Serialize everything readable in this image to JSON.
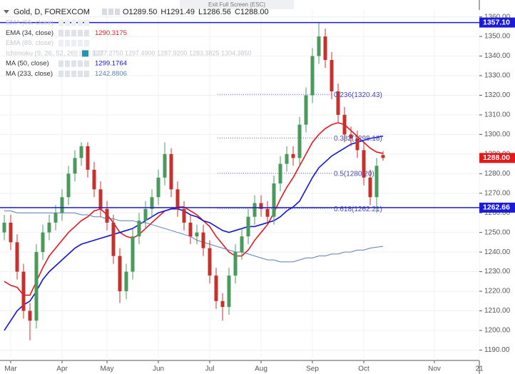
{
  "chart_data": {
    "type": "candlestick",
    "title": "Gold, D, FOREXCOM",
    "ohlc_legend": [
      "O1289.50",
      "H1291.49",
      "L1286.56",
      "C1288.00"
    ],
    "exit_text": "Exit Full Screen (ESC)",
    "categories": [
      null,
      "Mar",
      null,
      null,
      null,
      null,
      null,
      null,
      null,
      "Apr",
      null,
      null,
      null,
      null,
      null,
      null,
      "May",
      null,
      null,
      null,
      null,
      null,
      null,
      null,
      "Jun",
      null,
      null,
      null,
      null,
      null,
      null,
      null,
      "Jul",
      null,
      null,
      null,
      null,
      null,
      null,
      null,
      "Aug",
      null,
      null,
      null,
      null,
      null,
      null,
      null,
      "Sep",
      null,
      null,
      null,
      null,
      null,
      null,
      null,
      "Oct",
      null,
      null,
      null,
      null,
      null,
      null,
      null,
      null,
      null,
      null,
      "Nov",
      null,
      null,
      null,
      null,
      null,
      null,
      "21"
    ],
    "open": [
      1250,
      1255,
      1245,
      1230,
      1210,
      1205,
      1240,
      1250,
      1255,
      1260,
      1268,
      1280,
      1288,
      1294,
      1282,
      1272,
      1262,
      1255,
      1238,
      1220,
      1230,
      1248,
      1256,
      1262,
      1268,
      1278,
      1290,
      1272,
      1262,
      1255,
      1248,
      1250,
      1242,
      1228,
      1215,
      1212,
      1228,
      1240,
      1248,
      1258,
      1265,
      1262,
      1258,
      1275,
      1285,
      1290,
      1288,
      1305,
      1320,
      1340,
      1350,
      1338,
      1322,
      1310,
      1300,
      1298,
      1292,
      1278,
      1268,
      1289.5,
      null,
      null,
      null,
      null,
      null,
      null,
      null,
      null,
      null,
      null,
      null,
      null,
      null,
      null,
      null
    ],
    "high": [
      1259,
      1259,
      1249,
      1234,
      1214,
      1244,
      1254,
      1259,
      1264,
      1272,
      1284,
      1292,
      1296,
      1296,
      1286,
      1276,
      1266,
      1259,
      1242,
      1234,
      1252,
      1260,
      1266,
      1272,
      1282,
      1296,
      1293,
      1276,
      1266,
      1259,
      1254,
      1254,
      1246,
      1232,
      1219,
      1232,
      1244,
      1252,
      1262,
      1269,
      1269,
      1266,
      1279,
      1289,
      1294,
      1294,
      1309,
      1324,
      1344,
      1357.1,
      1354,
      1342,
      1326,
      1314,
      1304,
      1302,
      1296,
      1282,
      1288,
      1291.49,
      null,
      null,
      null,
      null,
      null,
      null,
      null,
      null,
      null,
      null,
      null,
      null,
      null,
      null,
      null
    ],
    "low": [
      1246,
      1241,
      1226,
      1206,
      1195,
      1201,
      1236,
      1246,
      1251,
      1256,
      1264,
      1276,
      1284,
      1278,
      1268,
      1258,
      1251,
      1234,
      1214,
      1216,
      1226,
      1244,
      1252,
      1258,
      1264,
      1274,
      1268,
      1258,
      1251,
      1244,
      1244,
      1238,
      1224,
      1211,
      1205,
      1208,
      1224,
      1236,
      1244,
      1254,
      1258,
      1254,
      1254,
      1271,
      1281,
      1284,
      1284,
      1301,
      1316,
      1336,
      1334,
      1318,
      1306,
      1296,
      1294,
      1288,
      1274,
      1264,
      1260,
      1286.56,
      null,
      null,
      null,
      null,
      null,
      null,
      null,
      null,
      null,
      null,
      null,
      null,
      null,
      null,
      null
    ],
    "close": [
      1255,
      1245,
      1230,
      1210,
      1205,
      1240,
      1250,
      1255,
      1260,
      1268,
      1280,
      1288,
      1294,
      1282,
      1272,
      1262,
      1255,
      1238,
      1220,
      1230,
      1248,
      1256,
      1262,
      1268,
      1278,
      1290,
      1272,
      1262,
      1255,
      1248,
      1250,
      1242,
      1228,
      1215,
      1212,
      1228,
      1240,
      1248,
      1258,
      1265,
      1262,
      1258,
      1275,
      1285,
      1290,
      1288,
      1305,
      1320,
      1340,
      1350,
      1338,
      1322,
      1310,
      1300,
      1298,
      1292,
      1278,
      1268,
      1284,
      1288,
      null,
      null,
      null,
      null,
      null,
      null,
      null,
      null,
      null,
      null,
      null,
      null,
      null,
      null,
      null
    ],
    "up_color": "#4a9a5c",
    "down_color": "#c8302c",
    "series": [
      {
        "name": "EMA (34, close)",
        "color": "#e3191c",
        "values": [
          1225,
          1223,
          1222,
          1218,
          1218,
          1225,
          1232,
          1238,
          1242,
          1246,
          1250,
          1253,
          1256,
          1258,
          1261,
          1262,
          1259,
          1255,
          1250,
          1248,
          1247,
          1249,
          1252,
          1255,
          1258,
          1261,
          1262,
          1263,
          1263,
          1261,
          1259,
          1256,
          1253,
          1248,
          1244,
          1240,
          1238,
          1238,
          1241,
          1246,
          1250,
          1254,
          1260,
          1267,
          1273,
          1278,
          1284,
          1290,
          1296,
          1300,
          1303,
          1305,
          1306,
          1305,
          1302,
          1299,
          1296,
          1293,
          1291,
          1290.3175,
          null,
          null,
          null,
          null,
          null,
          null,
          null,
          null,
          null,
          null,
          null,
          null,
          null,
          null,
          null
        ]
      },
      {
        "name": "MA (50, close)",
        "color": "#1414d4",
        "values": [
          1200,
          1205,
          1210,
          1213,
          1215,
          1220,
          1226,
          1230,
          1233,
          1236,
          1239,
          1242,
          1244,
          1245,
          1246,
          1247,
          1248,
          1249,
          1250,
          1251,
          1252,
          1254,
          1256,
          1258,
          1260,
          1261,
          1262,
          1262,
          1261,
          1259,
          1258,
          1256,
          1255,
          1253,
          1251,
          1250,
          1251,
          1252,
          1253,
          1253,
          1254,
          1255,
          1256,
          1258,
          1261,
          1263,
          1266,
          1272,
          1278,
          1283,
          1286,
          1289,
          1291,
          1293,
          1295,
          1296,
          1297,
          1298,
          1298.5,
          1299.1764,
          null,
          null,
          null,
          null,
          null,
          null,
          null,
          null,
          null,
          null,
          null,
          null,
          null,
          null,
          null
        ]
      },
      {
        "name": "MA (233, close)",
        "color": "#5b7fb8",
        "values": [
          1261,
          1261,
          1260,
          1260,
          1260,
          1260,
          1260,
          1260,
          1260,
          1260,
          1260,
          1260,
          1259,
          1259,
          1258,
          1258,
          1257,
          1257,
          1256,
          1256,
          1256,
          1255,
          1255,
          1254,
          1253,
          1252,
          1251,
          1250,
          1249,
          1248,
          1246,
          1245,
          1244,
          1243,
          1242,
          1241,
          1240,
          1240,
          1239,
          1238,
          1237,
          1236,
          1236,
          1235,
          1235,
          1235,
          1236,
          1237,
          1237,
          1238,
          1238,
          1239,
          1239,
          1240,
          1240,
          1241,
          1241,
          1242,
          1242.5,
          1242.8806,
          null,
          null,
          null,
          null,
          null,
          null,
          null,
          null,
          null,
          null,
          null,
          null,
          null,
          null,
          null
        ]
      }
    ],
    "hidden_indicators": [
      {
        "name": "EMA (55, close)"
      },
      {
        "name": "EMA (89, close)"
      },
      {
        "name": "Ichimoku (9, 26, 52, 26)",
        "readings": [
          "1277.2750",
          "1297.4900",
          "1287.9200",
          "1283.3825",
          "1304.3850"
        ]
      }
    ],
    "hlines": [
      {
        "value": 1357.1,
        "label": "1357.10"
      },
      {
        "value": 1262.66,
        "label": "1262.66"
      }
    ],
    "hline_color": "#1c1cd6",
    "fib_levels": [
      {
        "value": 1320.43,
        "label": "0.236(1320.43)"
      },
      {
        "value": 1298.18,
        "label": "0.382(1298.18)"
      },
      {
        "value": 1280.2,
        "label": "0.5(1280.20)"
      },
      {
        "value": 1262.21,
        "label": "0.618(1262.21)"
      }
    ],
    "price_label": {
      "value": 1288,
      "label": "1288.00"
    },
    "ylim": [
      1184.7,
      1363.5
    ],
    "yticks": [
      {
        "value": 1190,
        "label": "1190.00"
      },
      {
        "value": 1200,
        "label": "1200.00"
      },
      {
        "value": 1210,
        "label": "1210.00"
      },
      {
        "value": 1220,
        "label": "1220.00"
      },
      {
        "value": 1230,
        "label": "1230.00"
      },
      {
        "value": 1240,
        "label": "1240.00"
      },
      {
        "value": 1250,
        "label": "1250.00"
      },
      {
        "value": 1260,
        "label": "1260.00"
      },
      {
        "value": 1270,
        "label": "1270.00"
      },
      {
        "value": 1280,
        "label": "1280.00"
      },
      {
        "value": 1290,
        "label": "1290.00"
      },
      {
        "value": 1300,
        "label": "1300.00"
      },
      {
        "value": 1310,
        "label": "1310.00"
      },
      {
        "value": 1320,
        "label": "1320.00"
      },
      {
        "value": 1330,
        "label": "1330.00"
      },
      {
        "value": 1340,
        "label": "1340.00"
      },
      {
        "value": 1350,
        "label": "1350.00"
      },
      {
        "value": 1360,
        "label": "1360.00"
      }
    ],
    "grid": true
  }
}
